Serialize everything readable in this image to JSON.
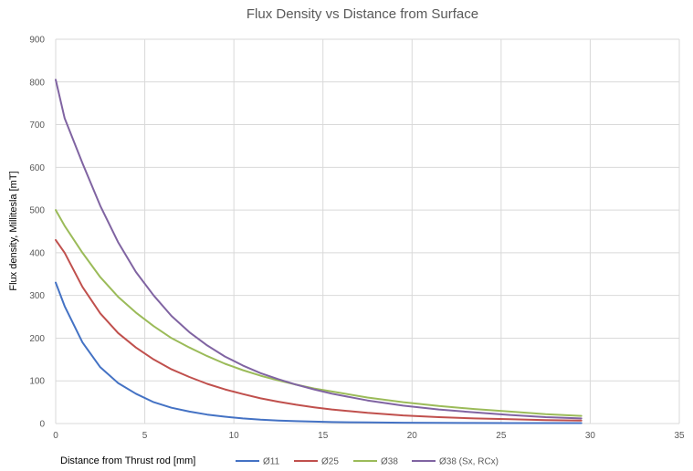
{
  "chart_data": {
    "type": "line",
    "title": "Flux Density vs Distance from Surface",
    "xlabel": "Distance from Thrust rod [mm]",
    "ylabel": "Flux density, Millitesla [mT]",
    "xlim": [
      0,
      35
    ],
    "ylim": [
      0,
      900
    ],
    "x_ticks": [
      "0",
      "5",
      "10",
      "15",
      "20",
      "25",
      "30",
      "35"
    ],
    "y_ticks": [
      "0",
      "100",
      "200",
      "300",
      "400",
      "500",
      "600",
      "700",
      "800",
      "900"
    ],
    "grid": true,
    "legend_position": "bottom",
    "series": [
      {
        "name": "Ø11",
        "color": "#4472c4",
        "x": [
          0,
          0.5,
          1.5,
          2.5,
          3.5,
          4.5,
          5.5,
          6.5,
          7.5,
          8.5,
          9.5,
          10.5,
          11.5,
          12.5,
          13.5,
          14.5,
          15.5,
          17.5,
          19.5,
          21.5,
          23.5,
          25.5,
          27.5,
          29.5
        ],
        "y": [
          330,
          275,
          190,
          132,
          95,
          70,
          50,
          37,
          28,
          21,
          16,
          12,
          9,
          7,
          5.5,
          4.5,
          3.5,
          2.5,
          2,
          1.5,
          1.2,
          1,
          1,
          1
        ]
      },
      {
        "name": "Ø25",
        "color": "#c0504d",
        "x": [
          0,
          0.5,
          1.5,
          2.5,
          3.5,
          4.5,
          5.5,
          6.5,
          7.5,
          8.5,
          9.5,
          10.5,
          11.5,
          12.5,
          13.5,
          14.5,
          15.5,
          17.5,
          19.5,
          21.5,
          23.5,
          25.5,
          27.5,
          29.5
        ],
        "y": [
          430,
          400,
          320,
          258,
          212,
          178,
          150,
          127,
          109,
          93,
          80,
          69,
          59,
          51,
          44,
          38,
          33,
          25,
          19,
          15,
          12,
          10,
          8,
          7
        ]
      },
      {
        "name": "Ø38",
        "color": "#9bbb59",
        "x": [
          0,
          0.5,
          1.5,
          2.5,
          3.5,
          4.5,
          5.5,
          6.5,
          7.5,
          8.5,
          9.5,
          10.5,
          11.5,
          12.5,
          13.5,
          14.5,
          15.5,
          17.5,
          19.5,
          21.5,
          23.5,
          25.5,
          27.5,
          29.5
        ],
        "y": [
          500,
          463,
          400,
          343,
          297,
          260,
          228,
          200,
          178,
          158,
          140,
          125,
          112,
          101,
          91,
          82,
          75,
          61,
          50,
          41,
          34,
          28,
          22,
          18
        ]
      },
      {
        "name": "Ø38 (Sx, RCx)",
        "color": "#8064a2",
        "x": [
          0,
          0.5,
          1.5,
          2.5,
          3.5,
          4.5,
          5.5,
          6.5,
          7.5,
          8.5,
          9.5,
          10.5,
          11.5,
          12.5,
          13.5,
          14.5,
          15.5,
          17.5,
          19.5,
          21.5,
          23.5,
          25.5,
          27.5,
          29.5
        ],
        "y": [
          805,
          715,
          610,
          510,
          425,
          355,
          300,
          252,
          214,
          183,
          157,
          136,
          118,
          104,
          91,
          80,
          70,
          54,
          42,
          33,
          26,
          20,
          15,
          12
        ]
      }
    ]
  }
}
